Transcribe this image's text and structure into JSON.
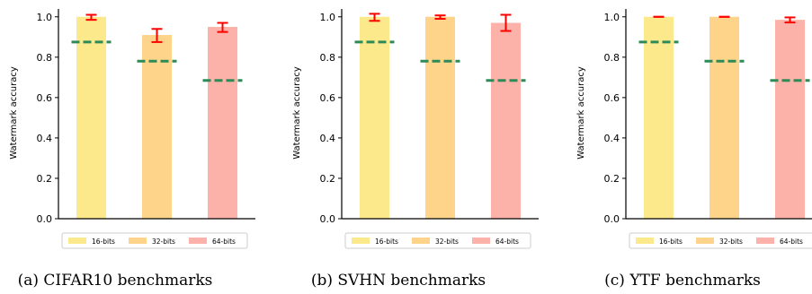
{
  "chart_data": [
    {
      "type": "bar",
      "ylabel": "Watermark accuracy",
      "ylim": [
        0,
        1.03
      ],
      "yticks": [
        "0.0",
        "0.2",
        "0.4",
        "0.6",
        "0.8",
        "1.0"
      ],
      "categories": [
        "16-bits",
        "32-bits",
        "64-bits"
      ],
      "values": [
        1.0,
        0.91,
        0.95
      ],
      "error_low": [
        0.985,
        0.875,
        0.925
      ],
      "error_high": [
        1.01,
        0.94,
        0.97
      ],
      "reference": [
        0.875,
        0.78,
        0.685
      ],
      "colors": [
        "#fce98c",
        "#fdd489",
        "#fcb2a8"
      ],
      "error_color": "#ff0000",
      "reference_color": "#2e8b57",
      "legend": [
        "16-bits",
        "32-bits",
        "64-bits"
      ],
      "legend_placement": "bottom",
      "caption": "(a)  CIFAR10 benchmarks"
    },
    {
      "type": "bar",
      "ylabel": "Watermark accuracy",
      "ylim": [
        0,
        1.03
      ],
      "yticks": [
        "0.0",
        "0.2",
        "0.4",
        "0.6",
        "0.8",
        "1.0"
      ],
      "categories": [
        "16-bits",
        "32-bits",
        "64-bits"
      ],
      "values": [
        1.0,
        1.0,
        0.97
      ],
      "error_low": [
        0.98,
        0.99,
        0.93
      ],
      "error_high": [
        1.015,
        1.007,
        1.01
      ],
      "reference": [
        0.875,
        0.78,
        0.685
      ],
      "colors": [
        "#fce98c",
        "#fdd489",
        "#fcb2a8"
      ],
      "error_color": "#ff0000",
      "reference_color": "#2e8b57",
      "legend": [
        "16-bits",
        "32-bits",
        "64-bits"
      ],
      "legend_placement": "bottom",
      "caption": "(b)  SVHN benchmarks"
    },
    {
      "type": "bar",
      "ylabel": "Watermark accuracy",
      "ylim": [
        0,
        1.03
      ],
      "yticks": [
        "0.0",
        "0.2",
        "0.4",
        "0.6",
        "0.8",
        "1.0"
      ],
      "categories": [
        "16-bits",
        "32-bits",
        "64-bits"
      ],
      "values": [
        1.0,
        1.0,
        0.985
      ],
      "error_low": [
        1.0,
        1.0,
        0.972
      ],
      "error_high": [
        1.0,
        1.0,
        0.997
      ],
      "reference": [
        0.875,
        0.78,
        0.685
      ],
      "colors": [
        "#fce98c",
        "#fdd489",
        "#fcb2a8"
      ],
      "error_color": "#ff0000",
      "reference_color": "#2e8b57",
      "legend": [
        "16-bits",
        "32-bits",
        "64-bits"
      ],
      "legend_placement": "bottom",
      "caption": "(c)  YTF benchmarks"
    }
  ]
}
